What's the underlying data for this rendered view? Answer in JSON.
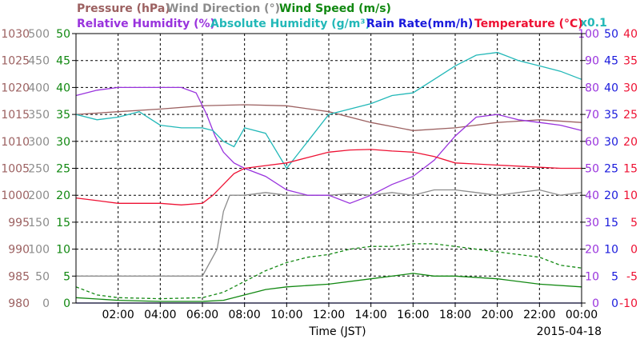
{
  "chart_data": {
    "type": "line",
    "date": "2015-04-18",
    "xlabel": "Time (JST)",
    "x_ticks": [
      "02:00",
      "04:00",
      "06:00",
      "08:00",
      "10:00",
      "12:00",
      "14:00",
      "16:00",
      "18:00",
      "20:00",
      "22:00",
      "00:00"
    ],
    "x_range_hours": [
      0,
      24
    ],
    "grid": true,
    "legend": [
      {
        "text": "Pressure (hPa)",
        "color": "#9c6161"
      },
      {
        "text": "Wind Direction (°)",
        "color": "#8c8c8c"
      },
      {
        "text": "Wind Speed (m/s)",
        "color": "#118811"
      },
      {
        "text": "Relative Humidity (%)",
        "color": "#9933dd"
      },
      {
        "text": "Absolute Humidity (g/m³)",
        "color": "#22b8b8"
      },
      {
        "text": "x0.1",
        "color": "#22b8b8"
      },
      {
        "text": "Rain Rate(mm/h)",
        "color": "#1a1adc"
      },
      {
        "text": "Temperature (°C)",
        "color": "#ee1133"
      }
    ],
    "axes": {
      "pressure": {
        "color": "#9c6161",
        "range": [
          980,
          1030
        ],
        "ticks": [
          "1030",
          "1025",
          "1020",
          "1015",
          "1010",
          "1005",
          "1000",
          "995",
          "990",
          "985",
          "980"
        ]
      },
      "wind_dir": {
        "color": "#8c8c8c",
        "range": [
          0,
          500
        ],
        "ticks": [
          "500",
          "450",
          "400",
          "350",
          "300",
          "250",
          "200",
          "150",
          "100",
          "50",
          "0"
        ]
      },
      "wind_speed": {
        "color": "#118811",
        "range": [
          0,
          50
        ],
        "ticks": [
          "50",
          "45",
          "40",
          "35",
          "30",
          "25",
          "20",
          "15",
          "10",
          "5",
          "0"
        ]
      },
      "humidity": {
        "color": "#9933dd",
        "range": [
          0,
          100
        ],
        "ticks": [
          "100",
          "90",
          "80",
          "70",
          "60",
          "50",
          "40",
          "30",
          "20",
          "10",
          "0"
        ]
      },
      "rain": {
        "color": "#1a1adc",
        "range": [
          0,
          50
        ],
        "ticks": [
          "50",
          "45",
          "40",
          "35",
          "30",
          "25",
          "20",
          "15",
          "10",
          "5",
          "0"
        ]
      },
      "temperature": {
        "color": "#ee1133",
        "range": [
          -10,
          40
        ],
        "ticks": [
          "40",
          "35",
          "30",
          "25",
          "20",
          "15",
          "10",
          "5",
          "0",
          "-5",
          "-10"
        ]
      }
    },
    "series": [
      {
        "name": "Pressure (hPa)",
        "axis": "pressure",
        "color": "#9c6161",
        "x": [
          0,
          2,
          4,
          6,
          8,
          10,
          12,
          14,
          16,
          18,
          20,
          22,
          24
        ],
        "y": [
          1015,
          1015.5,
          1016,
          1016.6,
          1016.8,
          1016.6,
          1015.5,
          1013.5,
          1012,
          1012.5,
          1013.5,
          1014,
          1013.5
        ]
      },
      {
        "name": "Wind Direction (°)",
        "axis": "wind_dir",
        "color": "#8c8c8c",
        "x": [
          0,
          6,
          6.7,
          7.0,
          7.3,
          7.6,
          8,
          9,
          10,
          11,
          12,
          13,
          14,
          15,
          16,
          17,
          18,
          19,
          20,
          21,
          22,
          23,
          24
        ],
        "y": [
          50,
          50,
          100,
          170,
          200,
          200,
          200,
          205,
          200,
          200,
          200,
          203,
          200,
          205,
          200,
          210,
          210,
          205,
          200,
          205,
          210,
          200,
          205
        ]
      },
      {
        "name": "Wind Speed (m/s)",
        "axis": "wind_speed",
        "color": "#118811",
        "x": [
          0,
          2,
          4,
          6,
          7,
          8,
          9,
          10,
          12,
          14,
          16,
          17,
          18,
          20,
          22,
          24
        ],
        "y": [
          1,
          0.5,
          0.3,
          0.3,
          0.5,
          1.5,
          2.5,
          3,
          3.5,
          4.5,
          5.5,
          5,
          5,
          4.5,
          3.5,
          3
        ]
      },
      {
        "name": "Wind Speed gust",
        "axis": "wind_speed",
        "color": "#118811",
        "dash": true,
        "x": [
          0,
          1,
          2,
          4,
          6,
          7,
          8,
          9,
          10,
          11,
          12,
          13,
          14,
          15,
          16,
          17,
          18,
          19,
          20,
          21,
          22,
          23,
          24
        ],
        "y": [
          3,
          1.5,
          1,
          0.8,
          1,
          2,
          4,
          6,
          7.5,
          8.5,
          9,
          10,
          10.5,
          10.5,
          11,
          11,
          10.5,
          10,
          9.5,
          9,
          8.5,
          7,
          6.5
        ]
      },
      {
        "name": "Relative Humidity (%)",
        "axis": "humidity",
        "color": "#9933dd",
        "x": [
          0,
          1,
          2,
          3,
          4,
          5,
          5.7,
          6.2,
          6.6,
          7.0,
          7.5,
          8,
          9,
          10,
          11,
          12,
          13,
          14,
          15,
          16,
          17,
          18,
          19,
          20,
          21,
          22,
          23,
          24
        ],
        "y": [
          77,
          79,
          80,
          80,
          80,
          80,
          78,
          70,
          62,
          56,
          52,
          50,
          47,
          42,
          40,
          40,
          37,
          40,
          44,
          47,
          53,
          62,
          69,
          70,
          68,
          67,
          66,
          64
        ]
      },
      {
        "name": "Absolute Humidity (g/m³)",
        "axis": "humidity",
        "color": "#22b8b8",
        "x": [
          0,
          1,
          2,
          3,
          4,
          5,
          6,
          6.5,
          7,
          7.5,
          8,
          9,
          10,
          11,
          12,
          13,
          14,
          15,
          16,
          17,
          18,
          19,
          20,
          21,
          22,
          23,
          24
        ],
        "y": [
          70,
          68,
          69,
          71,
          66,
          65,
          65,
          64,
          60,
          58,
          65,
          63,
          50,
          60,
          70,
          72,
          74,
          77,
          78,
          83,
          88,
          92,
          93,
          90,
          88,
          86,
          83
        ]
      },
      {
        "name": "Rain Rate(mm/h)",
        "axis": "rain",
        "color": "#1a1adc",
        "x": [
          0,
          24
        ],
        "y": [
          0,
          0
        ]
      },
      {
        "name": "Temperature (°C)",
        "axis": "temperature",
        "color": "#ee1133",
        "x": [
          0,
          1,
          2,
          3,
          4,
          5,
          6,
          6.5,
          7,
          7.5,
          8,
          9,
          10,
          11,
          12,
          13,
          14,
          15,
          16,
          17,
          18,
          19,
          20,
          21,
          22,
          23,
          24
        ],
        "y": [
          9.5,
          9.0,
          8.5,
          8.5,
          8.5,
          8.2,
          8.5,
          10,
          12,
          14,
          15,
          15.5,
          16,
          17,
          18,
          18.4,
          18.5,
          18.2,
          18,
          17.2,
          16,
          15.8,
          15.6,
          15.4,
          15.2,
          15.0,
          15.0
        ]
      }
    ]
  }
}
